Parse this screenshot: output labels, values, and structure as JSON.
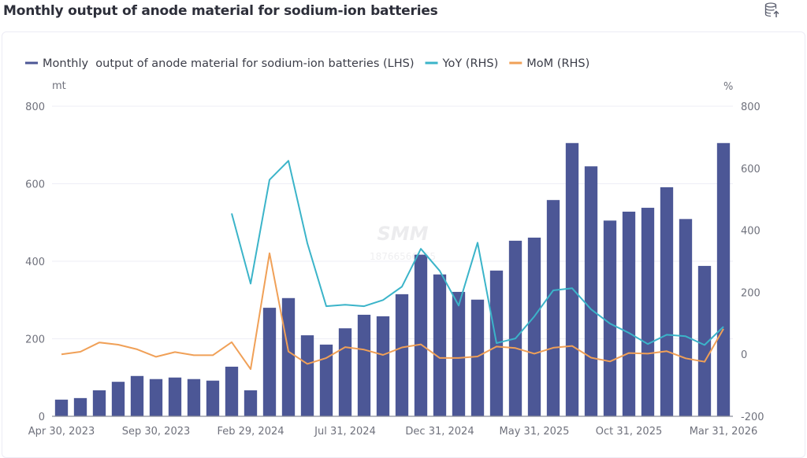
{
  "header": {
    "title": "Monthly output of anode material for sodium-ion batteries",
    "export_icon": "database-export-icon"
  },
  "watermark": {
    "brand": "SMM",
    "id": "18766566055"
  },
  "chart_data": {
    "type": "bar+line",
    "title": "Monthly output of anode material for sodium-ion batteries",
    "legend": [
      {
        "name": "Monthly  output of anode material for sodium-ion batteries (LHS)",
        "color": "#4c5796",
        "kind": "bar"
      },
      {
        "name": "YoY (RHS)",
        "color": "#3bb4c9",
        "kind": "line"
      },
      {
        "name": "MoM (RHS)",
        "color": "#f0a057",
        "kind": "line"
      }
    ],
    "legend_position": "top-left",
    "left_axis": {
      "unit": "mt",
      "range": [
        0,
        800
      ],
      "ticks": [
        "0",
        "200",
        "400",
        "600",
        "800"
      ]
    },
    "right_axis": {
      "unit": "%",
      "range": [
        -200,
        800
      ],
      "ticks": [
        "-200",
        "0",
        "200",
        "400",
        "600",
        "800"
      ]
    },
    "x_tick_labels": [
      "Apr 30, 2023",
      "Sep 30, 2023",
      "Feb 29, 2024",
      "Jul 31, 2024",
      "Dec 31, 2024",
      "May 31, 2025",
      "Oct 31, 2025",
      "Mar 31, 2026"
    ],
    "x_tick_indices": [
      0,
      5,
      10,
      15,
      20,
      25,
      30,
      35
    ],
    "grid": true,
    "categories": [
      "2023-04",
      "2023-05",
      "2023-06",
      "2023-07",
      "2023-08",
      "2023-09",
      "2023-10",
      "2023-11",
      "2023-12",
      "2024-01",
      "2024-02",
      "2024-03",
      "2024-04",
      "2024-05",
      "2024-06",
      "2024-07",
      "2024-08",
      "2024-09",
      "2024-10",
      "2024-11",
      "2024-12",
      "2025-01",
      "2025-02",
      "2025-03",
      "2025-04",
      "2025-05",
      "2025-06",
      "2025-07",
      "2025-08",
      "2025-09",
      "2025-10",
      "2025-11",
      "2025-12",
      "2026-01",
      "2026-02",
      "2026-03"
    ],
    "series": [
      {
        "name": "Monthly output (LHS)",
        "axis": "left",
        "values": [
          43,
          47,
          67,
          89,
          104,
          96,
          100,
          96,
          92,
          128,
          67,
          280,
          305,
          209,
          185,
          227,
          262,
          258,
          315,
          417,
          366,
          321,
          301,
          376,
          453,
          461,
          558,
          705,
          645,
          505,
          528,
          538,
          591,
          509,
          388,
          705
        ]
      },
      {
        "name": "YoY (RHS)",
        "axis": "right",
        "values": [
          null,
          null,
          null,
          null,
          null,
          null,
          null,
          null,
          null,
          454,
          228,
          563,
          624,
          358,
          155,
          160,
          155,
          175,
          218,
          340,
          269,
          157,
          360,
          36,
          51,
          122,
          206,
          213,
          145,
          99,
          69,
          33,
          63,
          58,
          30,
          89
        ]
      },
      {
        "name": "MoM (RHS)",
        "axis": "right",
        "values": [
          0,
          8,
          38,
          31,
          16,
          -8,
          7,
          -3,
          -3,
          39,
          -48,
          326,
          9,
          -31,
          -12,
          23,
          15,
          -2,
          22,
          32,
          -12,
          -12,
          -7,
          25,
          20,
          2,
          21,
          27,
          -11,
          -23,
          4,
          2,
          10,
          -13,
          -24,
          82
        ]
      }
    ]
  }
}
